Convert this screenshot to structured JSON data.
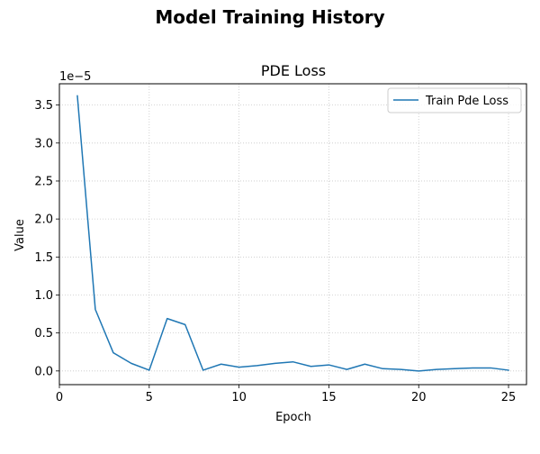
{
  "chart_data": {
    "type": "line",
    "suptitle": "Model Training History",
    "title": "PDE Loss",
    "xlabel": "Epoch",
    "ylabel": "Value",
    "offset_text": "1e−5",
    "scale": 1e-05,
    "xlim": [
      0,
      26
    ],
    "ylim": [
      -0.18,
      3.78
    ],
    "x_ticks": [
      0,
      5,
      10,
      15,
      20,
      25
    ],
    "y_ticks": [
      0.0,
      0.5,
      1.0,
      1.5,
      2.0,
      2.5,
      3.0,
      3.5
    ],
    "y_tick_labels": [
      "0.0",
      "0.5",
      "1.0",
      "1.5",
      "2.0",
      "2.5",
      "3.0",
      "3.5"
    ],
    "grid": true,
    "legend_position": "top-right",
    "series": [
      {
        "name": "Train Pde Loss",
        "color": "#1f77b4",
        "x": [
          1,
          2,
          3,
          4,
          5,
          6,
          7,
          8,
          9,
          10,
          11,
          12,
          13,
          14,
          15,
          16,
          17,
          18,
          19,
          20,
          21,
          22,
          23,
          24,
          25
        ],
        "y": [
          3.62,
          0.81,
          0.24,
          0.1,
          0.01,
          0.69,
          0.61,
          0.01,
          0.09,
          0.05,
          0.07,
          0.1,
          0.12,
          0.06,
          0.08,
          0.02,
          0.09,
          0.03,
          0.02,
          0.0,
          0.02,
          0.03,
          0.04,
          0.04,
          0.01
        ]
      }
    ]
  }
}
